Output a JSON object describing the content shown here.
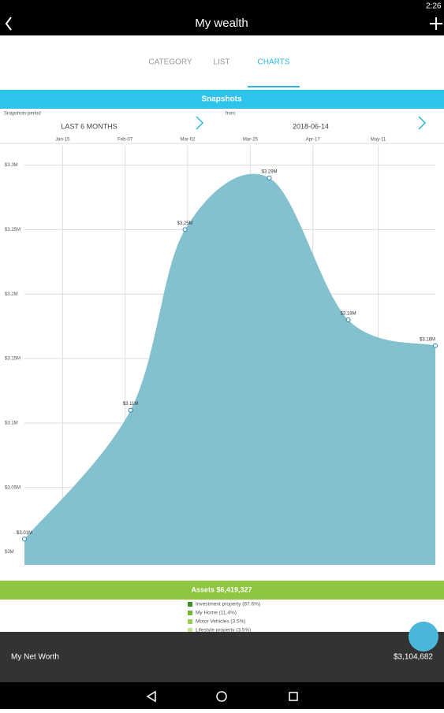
{
  "status_bar": {
    "time": "2:26"
  },
  "app_bar": {
    "title": "My wealth"
  },
  "tabs": [
    "CATEGORY",
    "LIST",
    "CHARTS"
  ],
  "section_title": "Snapshots",
  "period": {
    "label": "Snapshots period",
    "value": "LAST 6 MONTHS"
  },
  "from": {
    "label": "from",
    "value": "2018-06-14"
  },
  "chart_data": {
    "type": "area",
    "color": "#84c1cf",
    "point_color": "#2a7fa8",
    "x": [
      "Jan-01",
      "Feb-09",
      "Mar-01",
      "Apr-01",
      "Apr-30",
      "Jun-01"
    ],
    "values": [
      3010000,
      3110000,
      3250000,
      3290000,
      3180000,
      3160000
    ],
    "value_labels": [
      "$3.01M",
      "$3.11M",
      "$3.25M",
      "$3.29M",
      "$3.18M",
      "$3.16M"
    ],
    "xlim": [
      "Jan-01",
      "Jun-01"
    ],
    "xticks": [
      "Jan-15",
      "Feb-07",
      "Mar-02",
      "Mar-25",
      "Apr-17",
      "May-11"
    ],
    "ylim": [
      2990000,
      3315000
    ],
    "yticks": [
      {
        "value": 3000000,
        "label": "$3M"
      },
      {
        "value": 3050000,
        "label": "$3.05M"
      },
      {
        "value": 3100000,
        "label": "$3.1M"
      },
      {
        "value": 3150000,
        "label": "$3.15M"
      },
      {
        "value": 3200000,
        "label": "$3.2M"
      },
      {
        "value": 3250000,
        "label": "$3.25M"
      },
      {
        "value": 3300000,
        "label": "$3.3M"
      }
    ],
    "grid": true
  },
  "assets": {
    "title": "Assets $6,419,327",
    "items": [
      {
        "label": "Investment property (87.6%)",
        "color": "#3d8f2a"
      },
      {
        "label": "My Home (11.4%)",
        "color": "#6fb83a"
      },
      {
        "label": "Motor Vehicles (3.5%)",
        "color": "#9acb55"
      },
      {
        "label": "Lifestyle property (3.5%)",
        "color": "#c7e28f"
      }
    ]
  },
  "net_worth": {
    "label": "My Net Worth",
    "value": "$3,104,682"
  }
}
